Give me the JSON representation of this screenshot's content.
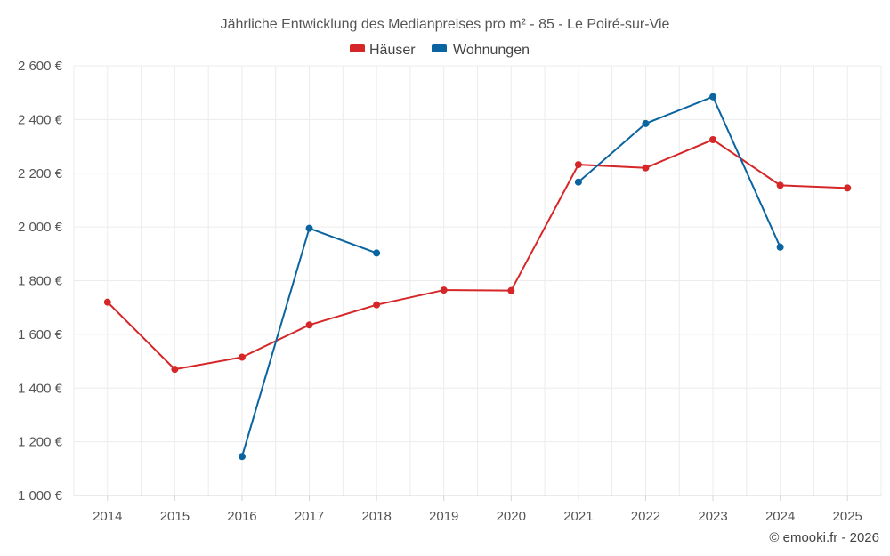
{
  "chart_data": {
    "type": "line",
    "title": "Jährliche Entwicklung des Medianpreises pro m² - 85 - Le Poiré-sur-Vie",
    "xlabel": "",
    "ylabel": "",
    "categories": [
      "2014",
      "2015",
      "2016",
      "2017",
      "2018",
      "2019",
      "2020",
      "2021",
      "2022",
      "2023",
      "2024",
      "2025"
    ],
    "ylim": [
      1000,
      2600
    ],
    "yticks": [
      1000,
      1200,
      1400,
      1600,
      1800,
      2000,
      2200,
      2400,
      2600
    ],
    "ytick_labels": [
      "1 000 €",
      "1 200 €",
      "1 400 €",
      "1 600 €",
      "1 800 €",
      "2 000 €",
      "2 200 €",
      "2 400 €",
      "2 600 €"
    ],
    "grid": true,
    "legend_position": "top-center",
    "series": [
      {
        "name": "Häuser",
        "color": "#d62728",
        "values": [
          1720,
          1470,
          1515,
          1635,
          1710,
          1765,
          1763,
          2232,
          2220,
          2325,
          2155,
          2145
        ]
      },
      {
        "name": "Wohnungen",
        "color": "#0a64a0",
        "values": [
          null,
          null,
          1145,
          1995,
          1903,
          null,
          null,
          2167,
          2385,
          2485,
          1925,
          null
        ]
      }
    ]
  },
  "credit": "© emooki.fr - 2026"
}
